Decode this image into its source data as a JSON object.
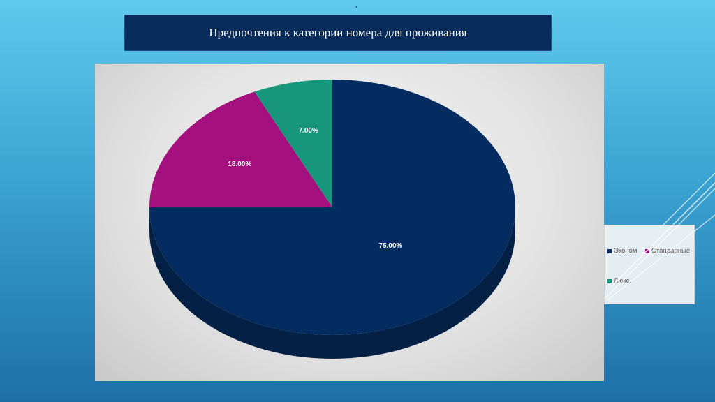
{
  "slide": {
    "title": "Предпочтения к категории номера для проживания"
  },
  "chart_data": {
    "type": "pie",
    "title": "",
    "categories": [
      "Эконом",
      "Стандарные",
      "Люкс"
    ],
    "values": [
      75,
      18,
      7
    ],
    "data_labels": [
      "75.00%",
      "18.00%",
      "7.00%"
    ],
    "colors": [
      "#052c60",
      "#a4117f",
      "#17967c"
    ],
    "legend_placement": "right",
    "style": "3d-tilted"
  }
}
